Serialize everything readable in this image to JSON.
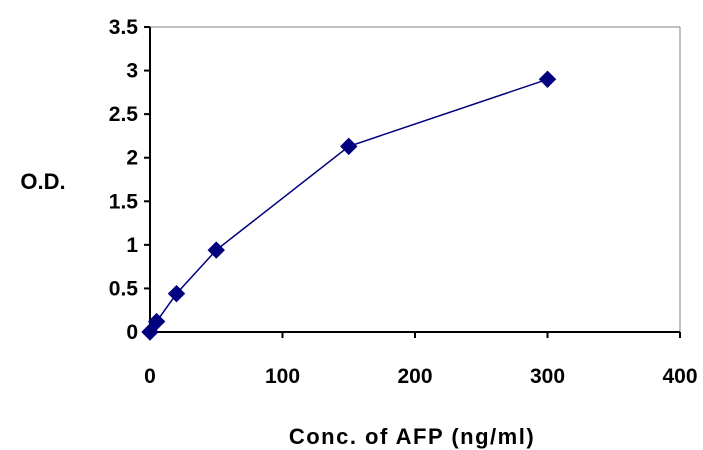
{
  "chart_data": {
    "type": "line",
    "title": "",
    "xlabel": "Conc. of AFP (ng/ml)",
    "ylabel": "O.D.",
    "xlim": [
      0,
      400
    ],
    "ylim": [
      0,
      3.5
    ],
    "x_ticks": [
      0,
      100,
      200,
      300,
      400
    ],
    "x_tick_labels": [
      "0",
      "100",
      "200",
      "300",
      "400"
    ],
    "y_ticks": [
      0,
      0.5,
      1,
      1.5,
      2,
      2.5,
      3,
      3.5
    ],
    "y_tick_labels": [
      "0",
      "0.5",
      "1",
      "1.5",
      "2",
      "2.5",
      "3",
      "3.5"
    ],
    "grid": false,
    "series": [
      {
        "marker": "diamond",
        "color": "#00007F",
        "x": [
          0,
          5,
          20,
          50,
          150,
          300
        ],
        "y": [
          0.0,
          0.12,
          0.44,
          0.94,
          2.13,
          2.9
        ]
      }
    ]
  }
}
